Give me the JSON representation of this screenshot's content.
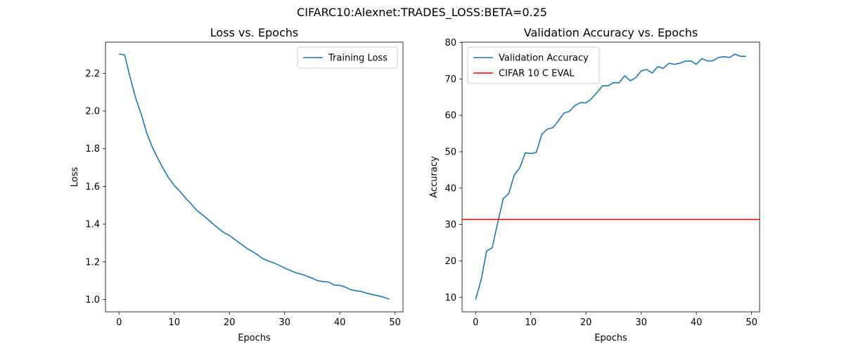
{
  "suptitle": "CIFARC10:Alexnet:TRADES_LOSS:BETA=0.25",
  "chart_data": [
    {
      "type": "line",
      "title": "Loss vs. Epochs",
      "xlabel": "Epochs",
      "ylabel": "Loss",
      "xlim": [
        -2.45,
        51.45
      ],
      "ylim": [
        0.935,
        2.365
      ],
      "xticks": [
        0,
        10,
        20,
        30,
        40,
        50
      ],
      "yticks": [
        1.0,
        1.2,
        1.4,
        1.6,
        1.8,
        2.0,
        2.2
      ],
      "ytick_labels": [
        "1.0",
        "1.2",
        "1.4",
        "1.6",
        "1.8",
        "2.0",
        "2.2"
      ],
      "grid": false,
      "legend_position": "upper right",
      "series": [
        {
          "name": "Training Loss",
          "color": "#1f77b4",
          "x": [
            0,
            1,
            2,
            3,
            4,
            5,
            6,
            7,
            8,
            9,
            10,
            11,
            12,
            13,
            14,
            15,
            16,
            17,
            18,
            19,
            20,
            21,
            22,
            23,
            24,
            25,
            26,
            27,
            28,
            29,
            30,
            31,
            32,
            33,
            34,
            35,
            36,
            37,
            38,
            39,
            40,
            41,
            42,
            43,
            44,
            45,
            46,
            47,
            48,
            49
          ],
          "y": [
            2.302,
            2.298,
            2.18,
            2.07,
            1.985,
            1.885,
            1.81,
            1.75,
            1.695,
            1.645,
            1.605,
            1.575,
            1.54,
            1.51,
            1.475,
            1.452,
            1.428,
            1.402,
            1.378,
            1.355,
            1.34,
            1.318,
            1.297,
            1.275,
            1.257,
            1.24,
            1.218,
            1.205,
            1.195,
            1.182,
            1.167,
            1.155,
            1.143,
            1.135,
            1.125,
            1.113,
            1.1,
            1.096,
            1.093,
            1.077,
            1.075,
            1.066,
            1.052,
            1.047,
            1.042,
            1.033,
            1.026,
            1.02,
            1.012,
            1.002
          ]
        }
      ]
    },
    {
      "type": "line",
      "title": "Validation Accuracy vs. Epochs",
      "xlabel": "Epochs",
      "ylabel": "Accuracy",
      "xlim": [
        -2.45,
        51.45
      ],
      "ylim": [
        6.0,
        80.1
      ],
      "xticks": [
        0,
        10,
        20,
        30,
        40,
        50
      ],
      "yticks": [
        10,
        20,
        30,
        40,
        50,
        60,
        70,
        80
      ],
      "ytick_labels": [
        "10",
        "20",
        "30",
        "40",
        "50",
        "60",
        "70",
        "80"
      ],
      "grid": false,
      "legend_position": "upper left",
      "series": [
        {
          "name": "Validation Accuracy",
          "color": "#1f77b4",
          "x": [
            0,
            1,
            2,
            3,
            4,
            5,
            6,
            7,
            8,
            9,
            10,
            11,
            12,
            13,
            14,
            15,
            16,
            17,
            18,
            19,
            20,
            21,
            22,
            23,
            24,
            25,
            26,
            27,
            28,
            29,
            30,
            31,
            32,
            33,
            34,
            35,
            36,
            37,
            38,
            39,
            40,
            41,
            42,
            43,
            44,
            45,
            46,
            47,
            48,
            49
          ],
          "y": [
            9.4,
            14.8,
            22.7,
            23.6,
            30.5,
            37.1,
            38.5,
            43.6,
            45.6,
            49.7,
            49.5,
            49.8,
            54.8,
            56.2,
            56.6,
            58.5,
            60.6,
            61.1,
            62.7,
            63.5,
            63.4,
            64.6,
            66.3,
            68.1,
            68.1,
            69.0,
            68.9,
            70.9,
            69.5,
            70.3,
            72.2,
            72.6,
            71.6,
            73.4,
            72.9,
            74.3,
            74.0,
            74.3,
            74.9,
            74.9,
            74.0,
            75.6,
            74.9,
            75.0,
            75.9,
            76.1,
            75.9,
            76.8,
            76.2,
            76.2
          ]
        },
        {
          "name": "CIFAR 10 C EVAL",
          "color": "#ff0000",
          "hline": 31.4
        }
      ]
    }
  ]
}
